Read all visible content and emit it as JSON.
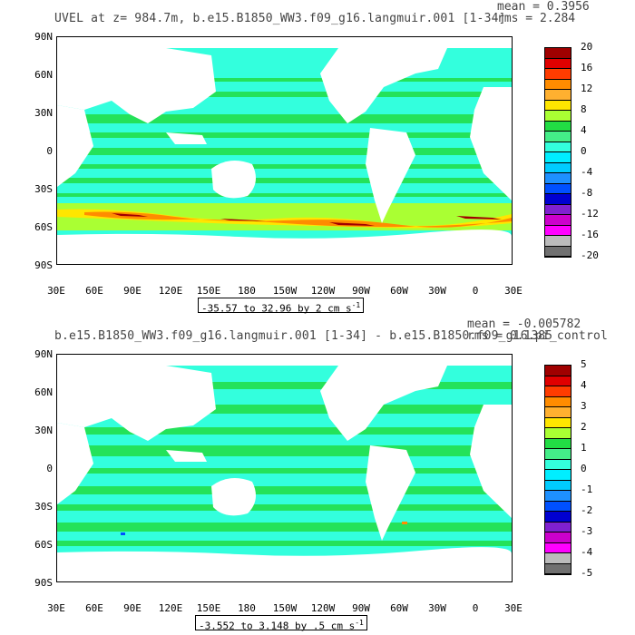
{
  "chart_data": [
    {
      "type": "heatmap",
      "title": "UVEL at z= 984.7m, b.e15.B1850_WW3.f09_g16.langmuir.001 [1-34]",
      "stats": {
        "mean": "mean = 0.3956",
        "rms": "rms = 2.284"
      },
      "range_label": "-35.57 to 32.96 by 2 cm s",
      "range_unit_exp": "-1",
      "y_tick_labels": [
        "90N",
        "60N",
        "30N",
        "0",
        "30S",
        "60S",
        "90S"
      ],
      "x_tick_labels": [
        "30E",
        "60E",
        "90E",
        "120E",
        "150E",
        "180",
        "150W",
        "120W",
        "90W",
        "60W",
        "30W",
        "0",
        "30E"
      ],
      "colorbar_labels": [
        "20",
        "16",
        "12",
        "8",
        "4",
        "0",
        "-4",
        "-8",
        "-12",
        "-16",
        "-20"
      ],
      "colorbar_colors": [
        "#a00000",
        "#e00000",
        "#ff3c00",
        "#ff8c00",
        "#ffb030",
        "#ffe600",
        "#aaff33",
        "#22dd44",
        "#44ee88",
        "#33ffdd",
        "#00eeff",
        "#00ccff",
        "#1e90ff",
        "#0050ff",
        "#0000d0",
        "#8020d0",
        "#cc00cc",
        "#ff00ff",
        "#bbbbbb",
        "#707070"
      ]
    },
    {
      "type": "heatmap",
      "title": "b.e15.B1850_WW3.f09_g16.langmuir.001 [1-34] - b.e15.B1850.f09_g16.pi_control",
      "stats": {
        "mean": "mean = -0.005782",
        "rms": "rms = 0.1385"
      },
      "range_label": "-3.552 to 3.148 by .5 cm s",
      "range_unit_exp": "-1",
      "y_tick_labels": [
        "90N",
        "60N",
        "30N",
        "0",
        "30S",
        "60S",
        "90S"
      ],
      "x_tick_labels": [
        "30E",
        "60E",
        "90E",
        "120E",
        "150E",
        "180",
        "150W",
        "120W",
        "90W",
        "60W",
        "30W",
        "0",
        "30E"
      ],
      "colorbar_labels": [
        "5",
        "4",
        "3",
        "2",
        "1",
        "0",
        "-1",
        "-2",
        "-3",
        "-4",
        "-5"
      ],
      "colorbar_colors": [
        "#a00000",
        "#e00000",
        "#ff3c00",
        "#ff8c00",
        "#ffb030",
        "#ffe600",
        "#aaff33",
        "#22dd44",
        "#44ee88",
        "#33ffdd",
        "#00eeff",
        "#00ccff",
        "#1e90ff",
        "#0050ff",
        "#0000d0",
        "#8020d0",
        "#cc00cc",
        "#ff00ff",
        "#bbbbbb",
        "#707070"
      ]
    }
  ]
}
